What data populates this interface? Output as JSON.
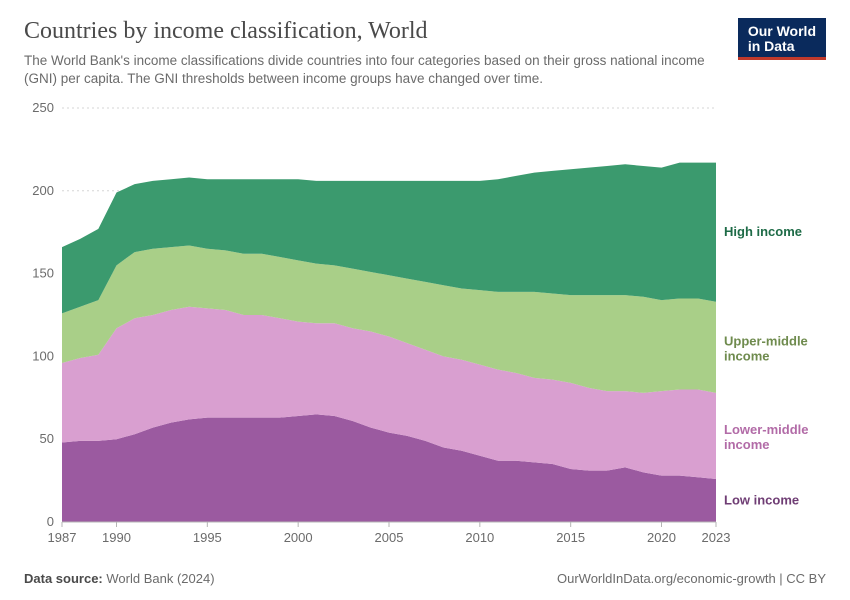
{
  "header": {
    "title": "Countries by income classification, World",
    "subtitle": "The World Bank's income classifications divide countries into four categories based on their gross national income (GNI) per capita. The GNI thresholds between income groups have changed over time."
  },
  "logo": {
    "line1": "Our World",
    "line2": "in Data"
  },
  "chart": {
    "type": "area-stacked",
    "background_color": "#ffffff",
    "grid_color": "#d6d6d6",
    "axis_text_color": "#6b6b6b",
    "title_fontsize": 24,
    "subtitle_fontsize": 13.5,
    "axis_fontsize": 13,
    "xlim": [
      1987,
      2023
    ],
    "ylim": [
      0,
      250
    ],
    "yticks": [
      0,
      50,
      100,
      150,
      200,
      250
    ],
    "xticks": [
      1987,
      1990,
      1995,
      2000,
      2005,
      2010,
      2015,
      2020,
      2023
    ],
    "years": [
      1987,
      1988,
      1989,
      1990,
      1991,
      1992,
      1993,
      1994,
      1995,
      1996,
      1997,
      1998,
      1999,
      2000,
      2001,
      2002,
      2003,
      2004,
      2005,
      2006,
      2007,
      2008,
      2009,
      2010,
      2011,
      2012,
      2013,
      2014,
      2015,
      2016,
      2017,
      2018,
      2019,
      2020,
      2021,
      2022,
      2023
    ],
    "series": [
      {
        "key": "low_income",
        "label": "Low income",
        "color": "#9b5aa0",
        "label_color": "#6f3d74",
        "values": [
          48,
          49,
          49,
          50,
          53,
          57,
          60,
          62,
          63,
          63,
          63,
          63,
          63,
          64,
          65,
          64,
          61,
          57,
          54,
          52,
          49,
          45,
          43,
          40,
          37,
          37,
          36,
          35,
          32,
          31,
          31,
          33,
          30,
          28,
          28,
          27,
          26
        ]
      },
      {
        "key": "lower_middle_income",
        "label": "Lower-middle income",
        "color": "#d99fd0",
        "label_color": "#b26ba7",
        "values": [
          48,
          50,
          52,
          67,
          70,
          68,
          68,
          68,
          66,
          65,
          62,
          62,
          60,
          57,
          55,
          56,
          56,
          58,
          58,
          56,
          55,
          55,
          55,
          55,
          55,
          53,
          51,
          51,
          52,
          50,
          48,
          46,
          48,
          51,
          52,
          53,
          52
        ]
      },
      {
        "key": "upper_middle_income",
        "label": "Upper-middle income",
        "color": "#a9cf88",
        "label_color": "#6f8b4e",
        "values": [
          30,
          31,
          33,
          38,
          40,
          40,
          38,
          37,
          36,
          36,
          37,
          37,
          37,
          37,
          36,
          35,
          36,
          36,
          37,
          39,
          41,
          43,
          43,
          45,
          47,
          49,
          52,
          52,
          53,
          56,
          58,
          58,
          58,
          55,
          55,
          55,
          55
        ]
      },
      {
        "key": "high_income",
        "label": "High income",
        "color": "#3b9a6e",
        "label_color": "#1e6b47",
        "values": [
          40,
          41,
          43,
          44,
          41,
          41,
          41,
          41,
          42,
          43,
          45,
          45,
          47,
          49,
          50,
          51,
          53,
          55,
          57,
          59,
          61,
          63,
          65,
          66,
          68,
          70,
          72,
          74,
          76,
          77,
          78,
          79,
          79,
          80,
          82,
          82,
          84
        ]
      }
    ]
  },
  "footer": {
    "source_label": "Data source:",
    "source_value": "World Bank (2024)",
    "attribution": "OurWorldInData.org/economic-growth | CC BY"
  }
}
